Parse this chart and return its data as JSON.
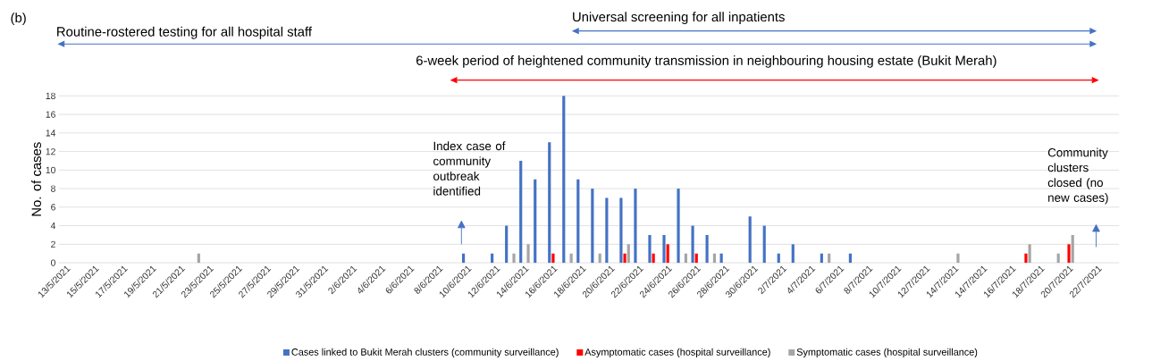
{
  "chart_data": {
    "type": "bar",
    "ylabel": "No. of cases",
    "categories": [
      "13/5/2021",
      null,
      "15/5/2021",
      null,
      "17/5/2021",
      null,
      "19/5/2021",
      null,
      "21/5/2021",
      null,
      "23/5/2021",
      null,
      "25/5/2021",
      null,
      "27/5/2021",
      null,
      "29/5/2021",
      null,
      "31/5/2021",
      null,
      "2/6/2021",
      null,
      "4/6/2021",
      null,
      "6/6/2021",
      null,
      "8/6/2021",
      null,
      "10/6/2021",
      null,
      "12/6/2021",
      null,
      "14/6/2021",
      null,
      "16/6/2021",
      null,
      "18/6/2021",
      null,
      "20/6/2021",
      null,
      "22/6/2021",
      null,
      "24/6/2021",
      null,
      "26/6/2021",
      null,
      "28/6/2021",
      null,
      "30/6/2021",
      null,
      "2/7/2021",
      null,
      "4/7/2021",
      null,
      "6/7/2021",
      null,
      "8/7/2021",
      null,
      "10/7/2021",
      null,
      "12/7/2021",
      null,
      "14/7/2021",
      null,
      "14/7/2021",
      null,
      "16/7/2021",
      null,
      "18/7/2021",
      null,
      "20/7/2021",
      null,
      "22/7/2021",
      null
    ],
    "series": [
      {
        "name": "Cases linked to Bukit Merah clusters (community surveillance)",
        "color": "#4472c4",
        "values": [
          0,
          0,
          0,
          0,
          0,
          0,
          0,
          0,
          0,
          0,
          0,
          0,
          0,
          0,
          0,
          0,
          0,
          0,
          0,
          0,
          0,
          0,
          0,
          0,
          0,
          0,
          0,
          0,
          1,
          0,
          1,
          4,
          11,
          9,
          13,
          18,
          9,
          8,
          7,
          7,
          8,
          3,
          3,
          8,
          4,
          3,
          1,
          0,
          5,
          4,
          1,
          2,
          0,
          1,
          0,
          1,
          0,
          0,
          0,
          0,
          0,
          0,
          0,
          0,
          0,
          0,
          0,
          0,
          0,
          0,
          0,
          0,
          0,
          0
        ]
      },
      {
        "name": "Asymptomatic cases (hospital surveillance)",
        "color": "#ff0000",
        "values": [
          0,
          0,
          0,
          0,
          0,
          0,
          0,
          0,
          0,
          0,
          0,
          0,
          0,
          0,
          0,
          0,
          0,
          0,
          0,
          0,
          0,
          0,
          0,
          0,
          0,
          0,
          0,
          0,
          0,
          0,
          0,
          0,
          0,
          0,
          1,
          0,
          0,
          0,
          0,
          1,
          0,
          1,
          2,
          0,
          1,
          0,
          0,
          0,
          0,
          0,
          0,
          0,
          0,
          0,
          0,
          0,
          0,
          0,
          0,
          0,
          0,
          0,
          0,
          0,
          0,
          0,
          0,
          1,
          0,
          0,
          2,
          0,
          0,
          0
        ]
      },
      {
        "name": "Symptomatic cases (hospital surveillance)",
        "color": "#a5a5a5",
        "values": [
          0,
          0,
          0,
          0,
          0,
          0,
          0,
          0,
          0,
          1,
          0,
          0,
          0,
          0,
          0,
          0,
          0,
          0,
          0,
          0,
          0,
          0,
          0,
          0,
          0,
          0,
          0,
          0,
          0,
          0,
          0,
          1,
          2,
          0,
          0,
          1,
          0,
          1,
          0,
          2,
          0,
          0,
          0,
          1,
          0,
          1,
          0,
          0,
          0,
          0,
          0,
          0,
          0,
          1,
          0,
          0,
          0,
          0,
          0,
          0,
          0,
          0,
          1,
          0,
          0,
          0,
          0,
          2,
          0,
          1,
          3,
          0,
          0,
          0
        ]
      }
    ],
    "ylim": [
      0,
      18
    ],
    "yticks": [
      0,
      2,
      4,
      6,
      8,
      10,
      12,
      14,
      16,
      18
    ],
    "grid": "y",
    "legend": "bottom",
    "annotations": [
      "(b)",
      "Universal screening for all inpatients",
      "Routine-rostered testing for all hospital staff",
      "6-week period of heightened community transmission in neighbouring housing estate (Bukit Merah)",
      "Index case of community outbreak identified",
      "Community clusters closed (no new cases)"
    ]
  }
}
